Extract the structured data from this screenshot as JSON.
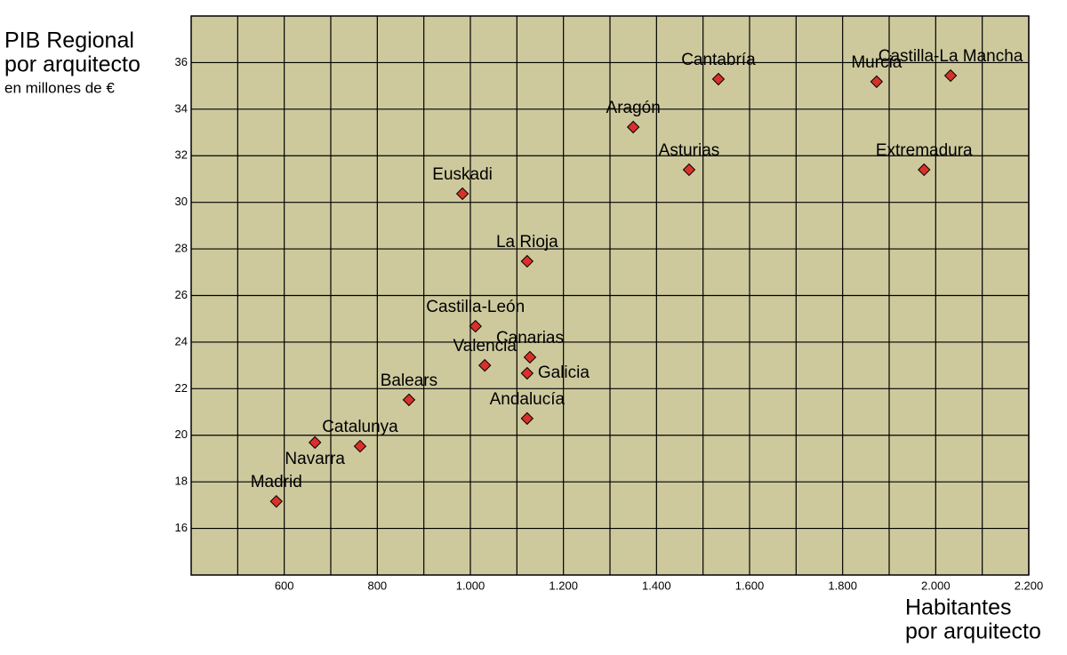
{
  "chart_data": {
    "type": "scatter",
    "y_title": [
      "PIB Regional",
      "por arquitecto",
      "en millones de €"
    ],
    "x_title": [
      "Habitantes",
      "por arquitecto"
    ],
    "xlim": [
      400,
      2200
    ],
    "xticks": [
      600,
      800,
      {
        "value": 1000,
        "label": "1.000"
      },
      {
        "value": 1200,
        "label": "1.200"
      },
      {
        "value": 1400,
        "label": "1.400"
      },
      {
        "value": 1600,
        "label": "1.600"
      },
      {
        "value": 1800,
        "label": "1.800"
      },
      {
        "value": 2000,
        "label": "2.000"
      },
      {
        "value": 2200,
        "label": "2.200"
      }
    ],
    "x_minor_grid": [
      500,
      700,
      900,
      1100,
      1300,
      1500,
      1700,
      1900,
      2100
    ],
    "ylim": [
      14,
      38
    ],
    "yticks": [
      16,
      18,
      20,
      22,
      24,
      26,
      28,
      30,
      32,
      34,
      36
    ],
    "grid": true,
    "background": "#cdc99d",
    "color": "#d9302a",
    "labels": [
      "Madrid",
      "Navarra",
      "Catalunya",
      "Balears",
      "Valencia",
      "Castilla-León",
      "Canarias",
      "Galicia",
      "Andalucía",
      "La Rioja",
      "Euskadi",
      "Aragón",
      "Asturias",
      "Cantabría",
      "Murcia",
      "Castilla-La Mancha",
      "Extremadura"
    ],
    "x": [
      583,
      666,
      763,
      868,
      1031,
      1011,
      1128,
      1122,
      1122,
      1122,
      983,
      1350,
      1470,
      1533,
      1873,
      2032,
      1975
    ],
    "y": [
      17.16,
      19.69,
      19.53,
      21.52,
      23.0,
      24.68,
      23.35,
      22.66,
      20.72,
      27.47,
      30.37,
      33.23,
      31.4,
      35.29,
      35.18,
      35.44,
      31.4
    ]
  }
}
